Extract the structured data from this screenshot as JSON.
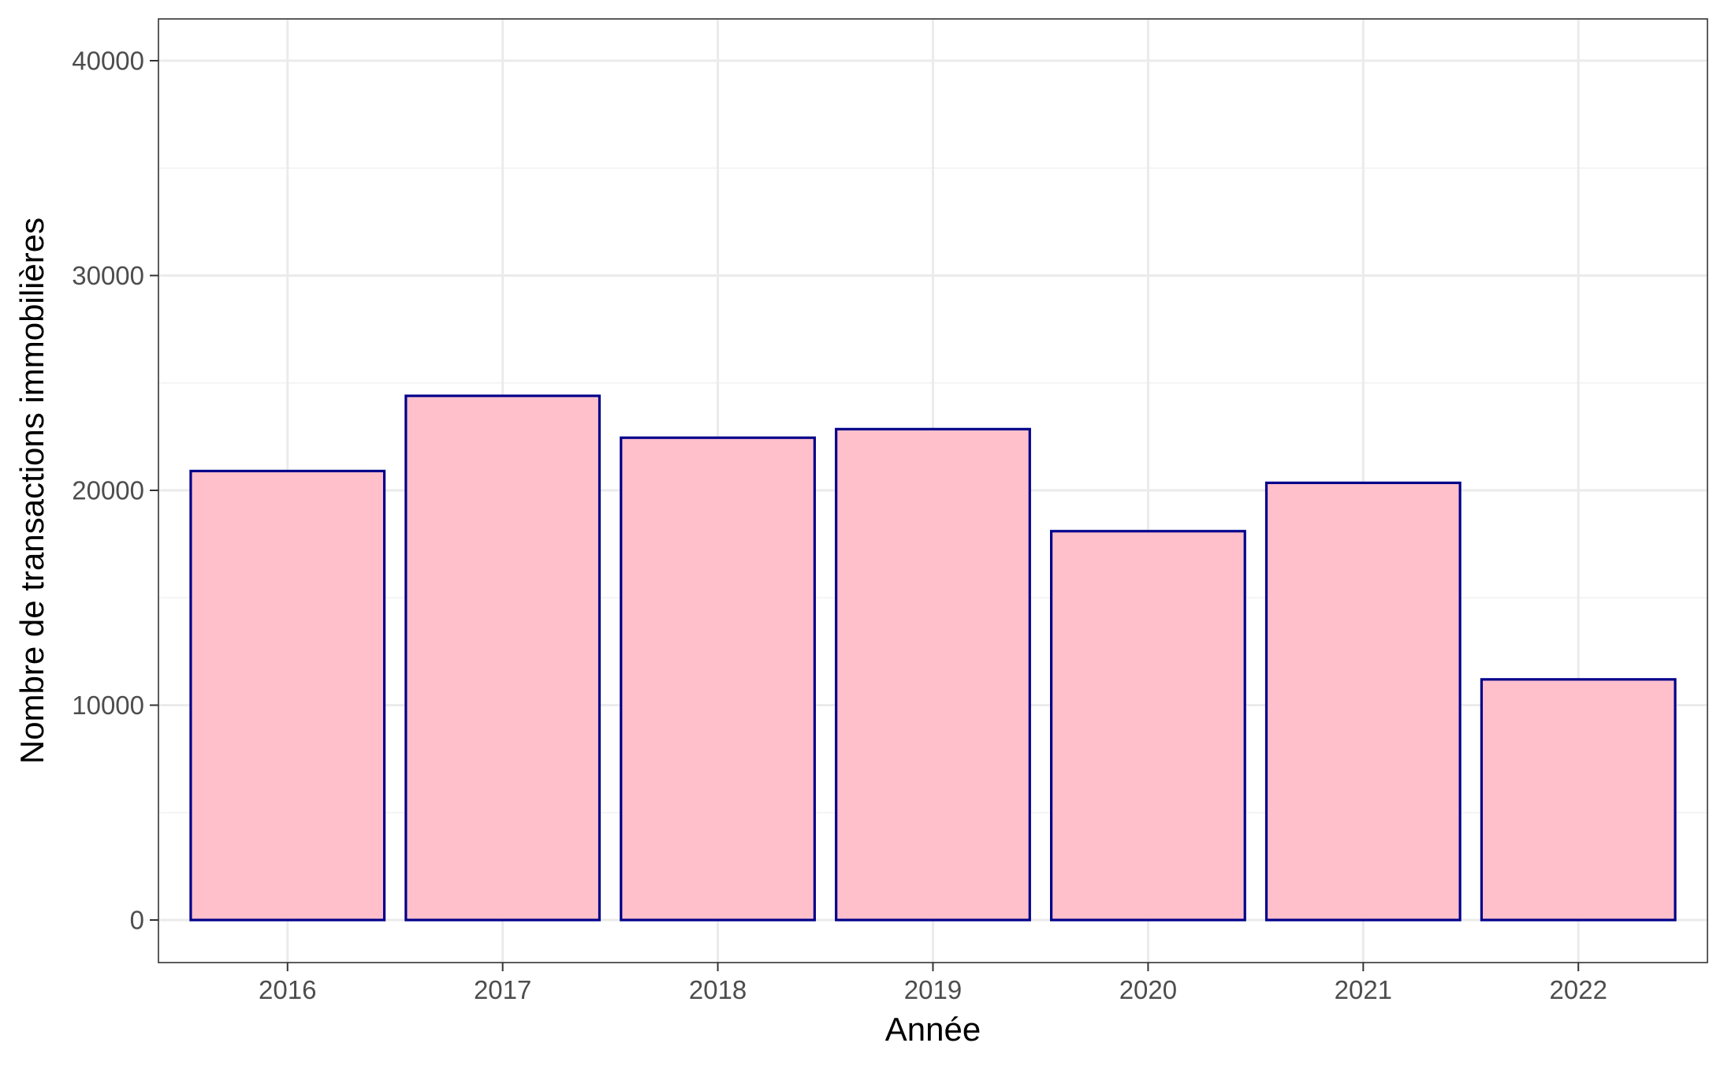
{
  "chart_data": {
    "type": "bar",
    "title": "",
    "xlabel": "Année",
    "ylabel": "Nombre de transactions immobilières",
    "categories": [
      "2016",
      "2017",
      "2018",
      "2019",
      "2020",
      "2021",
      "2022"
    ],
    "values": [
      20900,
      24400,
      22450,
      22850,
      18100,
      20350,
      11200
    ],
    "ylim": [
      0,
      40000
    ],
    "yticks": [
      0,
      10000,
      20000,
      30000,
      40000
    ],
    "ytick_labels": [
      "0",
      "10000",
      "20000",
      "30000",
      "40000"
    ],
    "grid": true,
    "legend": "none",
    "colors": {
      "bar_fill": "#FFC0CB",
      "bar_outline": "#00008B",
      "grid_major": "#EBEBEB",
      "grid_minor": "#F2F2F2",
      "panel_border": "#333333",
      "tick_text": "#4D4D4D",
      "axis_title_text": "#000000"
    }
  }
}
